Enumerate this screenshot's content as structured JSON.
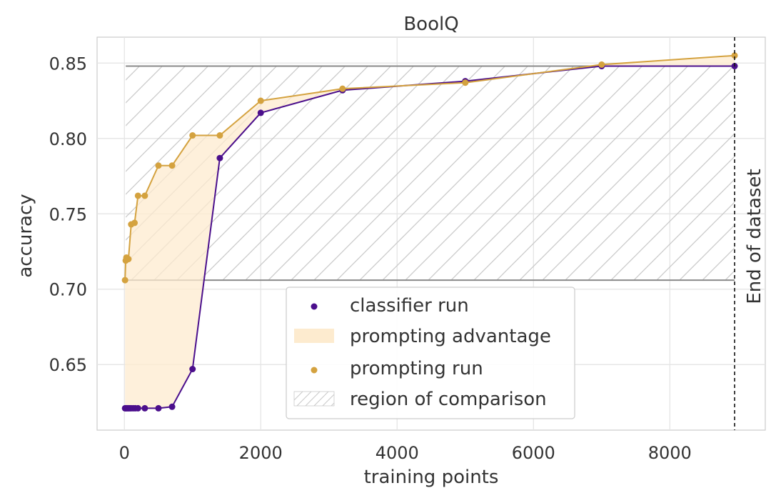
{
  "chart_data": {
    "type": "line",
    "title": "BoolQ",
    "xlabel": "training points",
    "ylabel": "accuracy",
    "xlim": [
      -400,
      9400
    ],
    "ylim": [
      0.6065,
      0.8672
    ],
    "xticks": [
      0,
      2000,
      4000,
      6000,
      8000
    ],
    "xtick_labels": [
      "0",
      "2000",
      "4000",
      "6000",
      "8000"
    ],
    "yticks": [
      0.65,
      0.7,
      0.75,
      0.8,
      0.85
    ],
    "ytick_labels": [
      "0.65",
      "0.70",
      "0.75",
      "0.80",
      "0.85"
    ],
    "grid": true,
    "legend_position": "bottom-center",
    "series": [
      {
        "name": "classifier run",
        "color": "#4b0f8c",
        "x": [
          10,
          20,
          30,
          50,
          60,
          80,
          100,
          130,
          160,
          200,
          300,
          500,
          700,
          1000,
          1400,
          2000,
          3200,
          5000,
          7000,
          8950
        ],
        "y": [
          0.621,
          0.621,
          0.621,
          0.621,
          0.621,
          0.621,
          0.621,
          0.621,
          0.621,
          0.621,
          0.621,
          0.621,
          0.622,
          0.647,
          0.787,
          0.817,
          0.832,
          0.838,
          0.848,
          0.848
        ]
      },
      {
        "name": "prompting run",
        "color": "#d4a23f",
        "x": [
          10,
          20,
          30,
          50,
          60,
          100,
          150,
          200,
          300,
          500,
          700,
          1000,
          1400,
          2000,
          3200,
          5000,
          7000,
          8950
        ],
        "y": [
          0.706,
          0.719,
          0.721,
          0.72,
          0.72,
          0.743,
          0.744,
          0.762,
          0.762,
          0.782,
          0.782,
          0.802,
          0.802,
          0.825,
          0.833,
          0.837,
          0.849,
          0.855
        ]
      }
    ],
    "prompting_advantage": {
      "name": "prompting advantage",
      "color": "#fdebcf"
    },
    "region_of_comparison": {
      "name": "region of comparison",
      "x": [
        20,
        8950
      ],
      "y": [
        0.706,
        0.848
      ]
    },
    "end_of_dataset": {
      "x": 8950,
      "label": "End of dataset"
    },
    "legend": [
      "classifier run",
      "prompting advantage",
      "prompting run",
      "region of comparison"
    ]
  }
}
